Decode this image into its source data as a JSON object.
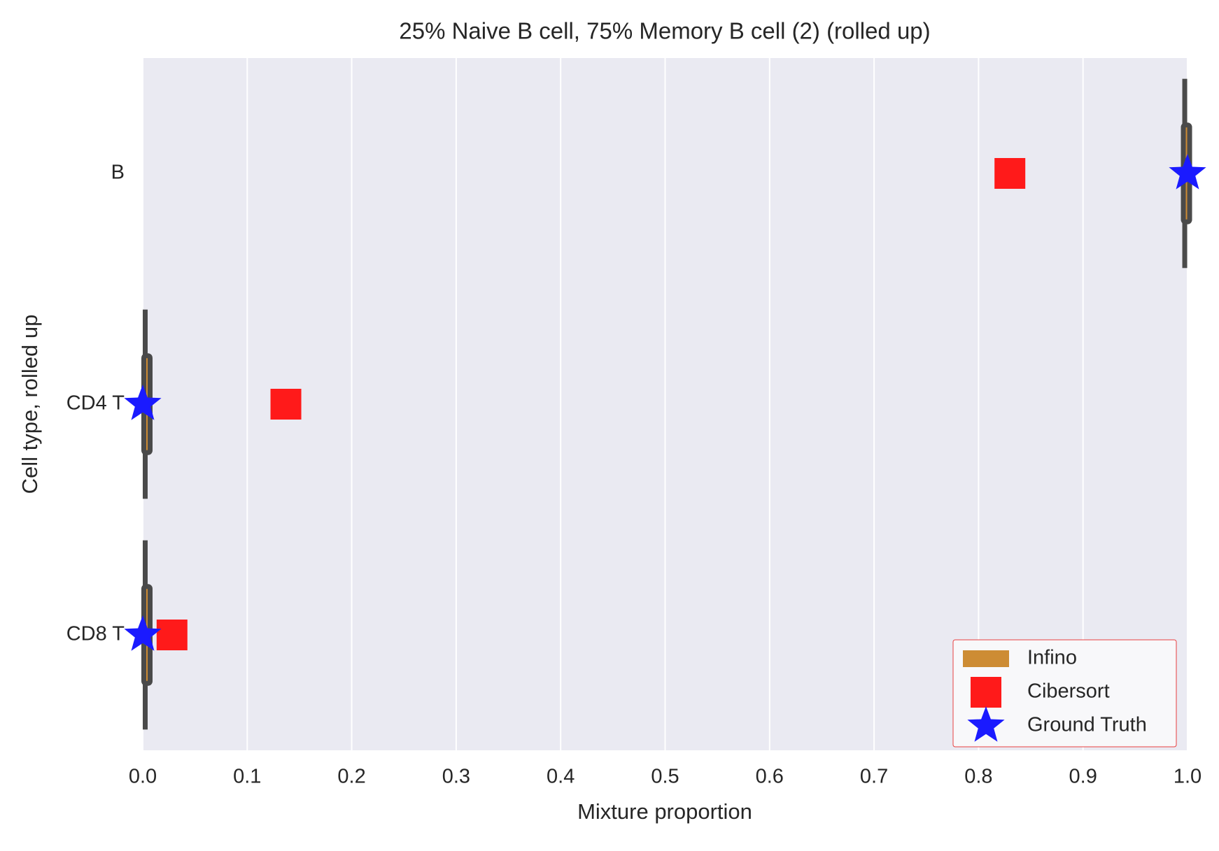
{
  "chart_data": {
    "type": "box-scatter",
    "title": "25% Naive B cell, 75% Memory B cell (2) (rolled up)",
    "xlabel": "Mixture proportion",
    "ylabel": "Cell type, rolled up",
    "categories": [
      "B",
      "CD4 T",
      "CD8 T"
    ],
    "xlim": [
      0,
      1
    ],
    "xticks": [
      {
        "value": 0,
        "label": "0.0"
      },
      0.1,
      0.2,
      0.3,
      0.4,
      0.5,
      0.6,
      0.7,
      0.8,
      0.9,
      {
        "value": 1,
        "label": "1.0"
      }
    ],
    "grid": true,
    "legend": "lower right",
    "series": [
      {
        "name": "Infino",
        "kind": "box",
        "color": "#cd8c34",
        "low": [
          0.995,
          0.0,
          0.0
        ],
        "q1": [
          0.996,
          0.001,
          0.001
        ],
        "q3": [
          0.999,
          0.005,
          0.003
        ],
        "high": [
          0.999,
          0.004,
          0.002
        ]
      },
      {
        "name": "Cibersort",
        "kind": "square",
        "color": "#ff1a1a",
        "values": [
          0.83,
          0.137,
          0.028
        ]
      },
      {
        "name": "Ground Truth",
        "kind": "star",
        "color": "#1a1aff",
        "values": [
          1.0,
          0.0,
          0.0
        ]
      }
    ]
  }
}
